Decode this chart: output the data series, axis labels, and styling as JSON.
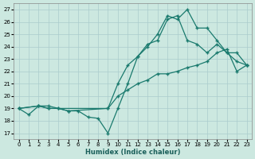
{
  "xlabel": "Humidex (Indice chaleur)",
  "xlim": [
    -0.5,
    23.5
  ],
  "ylim": [
    16.5,
    27.5
  ],
  "yticks": [
    17,
    18,
    19,
    20,
    21,
    22,
    23,
    24,
    25,
    26,
    27
  ],
  "xticks": [
    0,
    1,
    2,
    3,
    4,
    5,
    6,
    7,
    8,
    9,
    10,
    11,
    12,
    13,
    14,
    15,
    16,
    17,
    18,
    19,
    20,
    21,
    22,
    23
  ],
  "bg_color": "#cce8e0",
  "grid_color": "#aacccc",
  "line_color": "#1a7a6e",
  "line1_x": [
    0,
    1,
    2,
    3,
    4,
    5,
    6,
    7,
    8,
    9,
    10,
    11,
    12,
    13,
    14,
    15,
    16,
    17,
    18,
    19,
    20,
    21,
    22,
    23
  ],
  "line1_y": [
    19.0,
    18.5,
    19.2,
    19.2,
    19.0,
    18.8,
    18.8,
    18.3,
    18.2,
    17.0,
    19.0,
    21.0,
    23.2,
    24.0,
    25.0,
    26.5,
    26.2,
    27.0,
    25.5,
    25.5,
    24.5,
    23.5,
    23.5,
    22.5
  ],
  "line2_x": [
    0,
    2,
    3,
    4,
    5,
    9,
    10,
    11,
    12,
    13,
    14,
    15,
    16,
    17,
    18,
    19,
    20,
    21,
    22,
    23
  ],
  "line2_y": [
    19.0,
    19.2,
    19.0,
    19.0,
    18.8,
    19.0,
    21.0,
    22.5,
    23.2,
    24.2,
    24.5,
    26.2,
    26.5,
    24.5,
    24.2,
    23.5,
    24.2,
    23.5,
    22.8,
    22.5
  ],
  "line3_x": [
    0,
    2,
    3,
    9,
    10,
    11,
    12,
    13,
    14,
    15,
    16,
    17,
    18,
    19,
    20,
    21,
    22,
    23
  ],
  "line3_y": [
    19.0,
    19.2,
    19.0,
    19.0,
    20.0,
    20.5,
    21.0,
    21.3,
    21.8,
    21.8,
    22.0,
    22.3,
    22.5,
    22.8,
    23.5,
    23.8,
    22.0,
    22.5
  ]
}
